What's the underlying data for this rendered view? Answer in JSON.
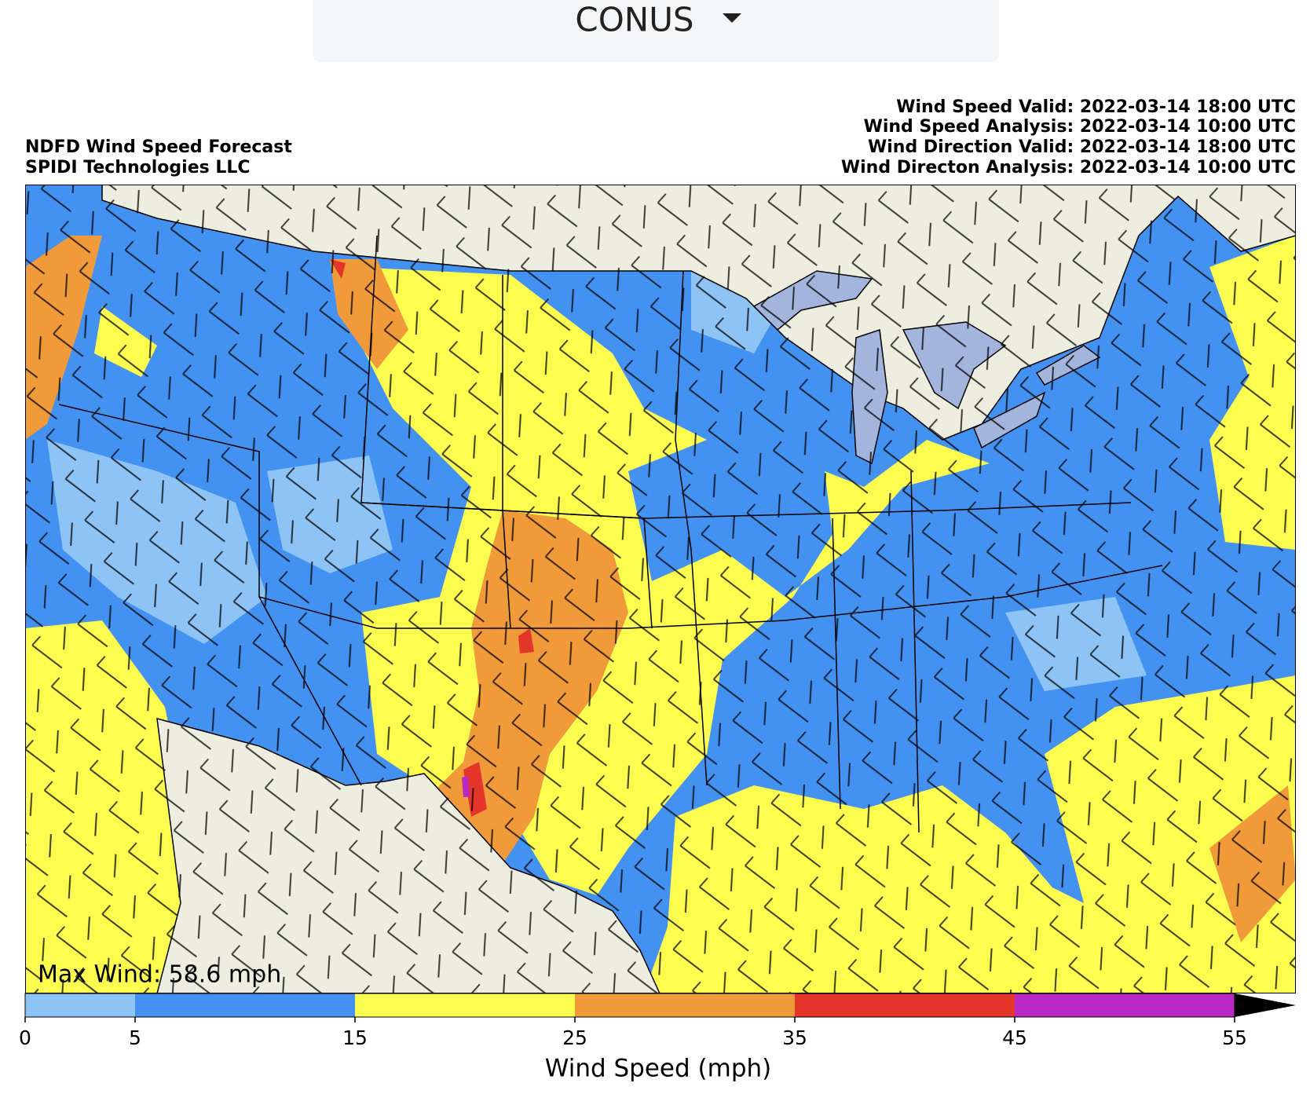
{
  "header": {
    "dropdown": "CONUS"
  },
  "map": {
    "title": "NDFD Wind Speed Forecast",
    "subtitle": "SPIDI Technologies LLC",
    "times": [
      "Wind Speed Valid: 2022-03-14 18:00 UTC",
      "Wind Speed Analysis: 2022-03-14 10:00 UTC",
      "Wind Direction Valid: 2022-03-14 18:00 UTC",
      "Wind Directon Analysis: 2022-03-14 10:00 UTC"
    ],
    "annotation": "Max Wind: 58.6 mph"
  },
  "colorbar": {
    "label": "Wind Speed (mph)",
    "ticks": [
      0,
      5,
      15,
      25,
      35,
      45,
      55
    ],
    "colors": [
      "#8ec3f5",
      "#4391f0",
      "#fdfd50",
      "#f09a3a",
      "#e3352a",
      "#b82ac3"
    ],
    "extend_color": "#000000"
  }
}
